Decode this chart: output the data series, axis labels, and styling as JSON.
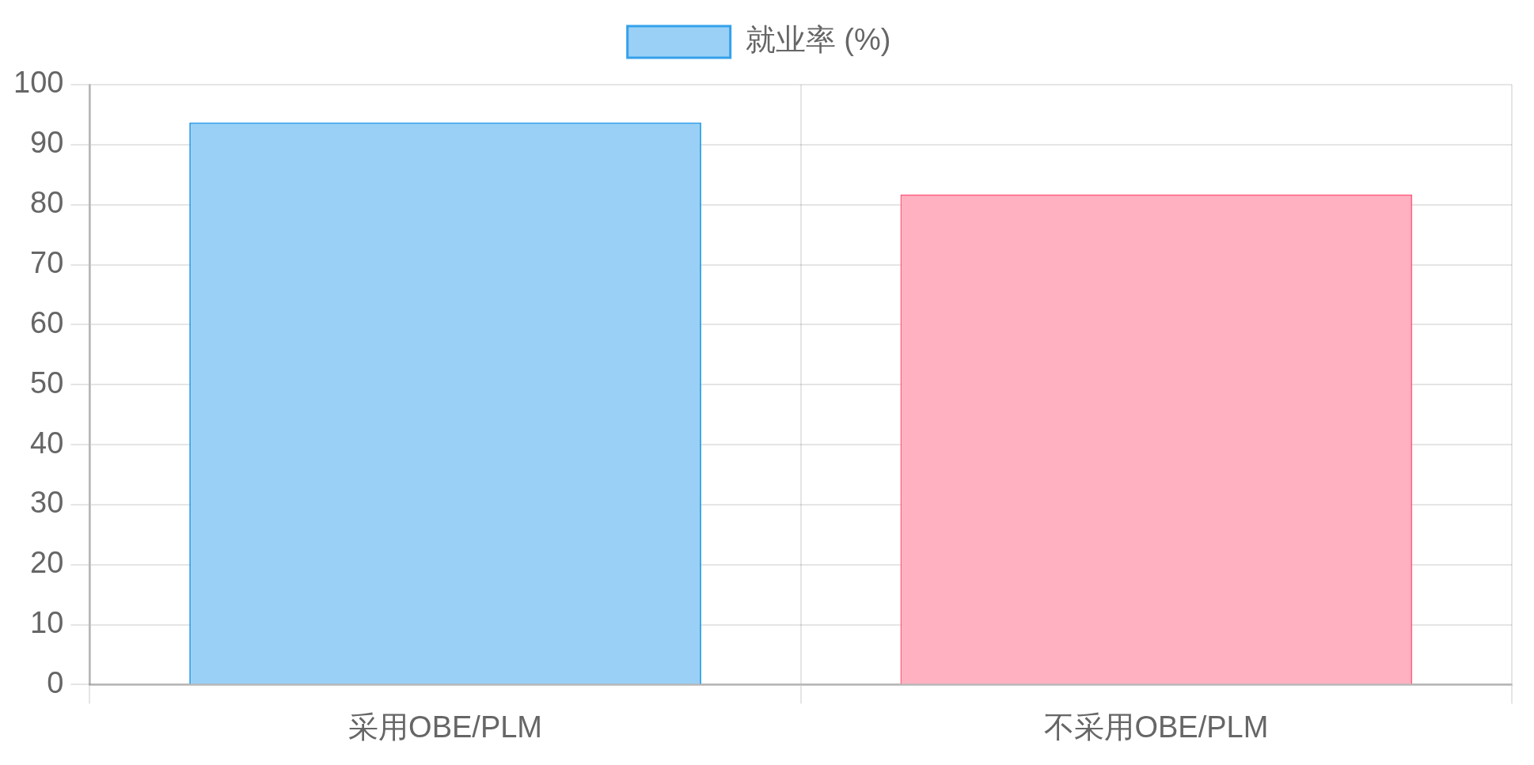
{
  "chart_data": {
    "type": "bar",
    "categories": [
      "采用OBE/PLM",
      "不采用OBE/PLM"
    ],
    "series": [
      {
        "name": "就业率 (%)",
        "color": "#9ad0f5",
        "colors": [
          "#9ad0f5",
          "#ffb1c1"
        ],
        "values": [
          93.7,
          81.7
        ]
      }
    ],
    "ylim": [
      0,
      100
    ],
    "yticks": [
      0,
      10,
      20,
      30,
      40,
      50,
      60,
      70,
      80,
      90,
      100
    ],
    "grid": true,
    "legend": "top"
  }
}
